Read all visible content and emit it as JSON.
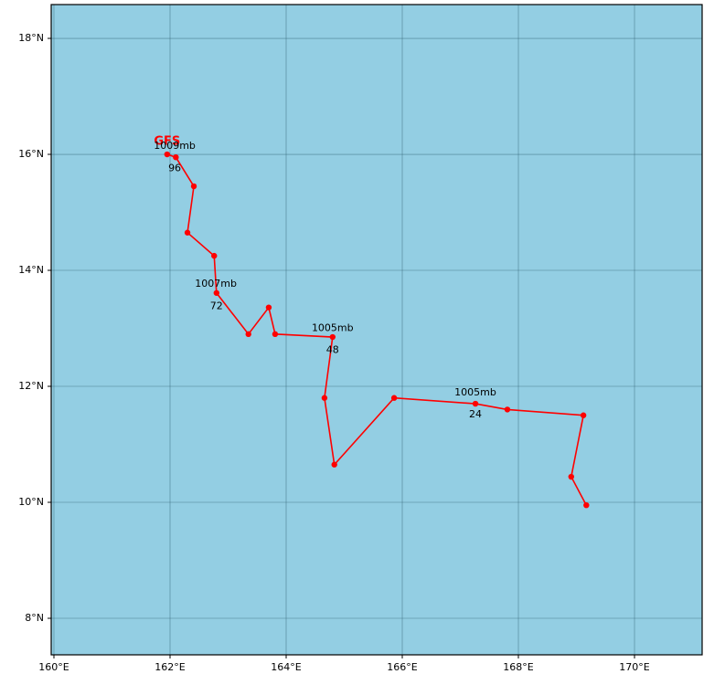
{
  "chart_data": {
    "type": "line",
    "series": [
      {
        "name": "GFS",
        "color": "#ff0000",
        "x": [
          161.95,
          162.1,
          162.41,
          162.3,
          162.76,
          162.8,
          163.35,
          163.7,
          163.81,
          164.8,
          164.66,
          164.83,
          165.86,
          167.26,
          167.81,
          169.12,
          168.91,
          169.17
        ],
        "values": [
          16.0,
          15.95,
          15.45,
          14.65,
          14.25,
          13.61,
          12.9,
          13.36,
          12.9,
          12.85,
          11.8,
          10.65,
          11.8,
          11.7,
          11.6,
          11.5,
          10.44,
          9.95
        ]
      }
    ],
    "annotations": [
      {
        "text": "1009mb",
        "x": 162.08,
        "y": 16.14
      },
      {
        "text": "96",
        "x": 162.08,
        "y": 15.76
      },
      {
        "text": "1007mb",
        "x": 162.79,
        "y": 13.76
      },
      {
        "text": "72",
        "x": 162.8,
        "y": 13.38
      },
      {
        "text": "1005mb",
        "x": 164.8,
        "y": 13.0
      },
      {
        "text": "48",
        "x": 164.8,
        "y": 12.62
      },
      {
        "text": "1005mb",
        "x": 167.26,
        "y": 11.89
      },
      {
        "text": "24",
        "x": 167.26,
        "y": 11.51
      }
    ],
    "xlim": [
      159.953,
      171.165
    ],
    "ylim": [
      7.37,
      18.583
    ],
    "xticks": [
      {
        "value": 160,
        "label": "160°E"
      },
      {
        "value": 162,
        "label": "162°E"
      },
      {
        "value": 164,
        "label": "164°E"
      },
      {
        "value": 166,
        "label": "166°E"
      },
      {
        "value": 168,
        "label": "168°E"
      },
      {
        "value": 170,
        "label": "170°E"
      }
    ],
    "yticks": [
      {
        "value": 8,
        "label": "8°N"
      },
      {
        "value": 10,
        "label": "10°N"
      },
      {
        "value": 12,
        "label": "12°N"
      },
      {
        "value": 14,
        "label": "14°N"
      },
      {
        "value": 16,
        "label": "16°N"
      },
      {
        "value": 18,
        "label": "18°N"
      }
    ],
    "grid": true,
    "background": "#93cee3"
  }
}
